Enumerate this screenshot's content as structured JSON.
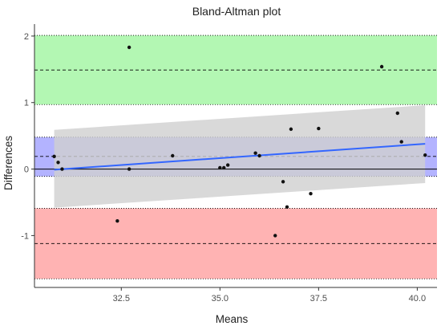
{
  "chart_data": {
    "type": "scatter",
    "title": "Bland-Altman plot",
    "xlabel": "Means",
    "ylabel": "Differences",
    "xlim": [
      30.3,
      40.5
    ],
    "ylim": [
      -1.78,
      2.18
    ],
    "x_ticks": [
      32.5,
      35.0,
      37.5,
      40.0
    ],
    "x_tick_labels": [
      "32.5",
      "35.0",
      "37.5",
      "40.0"
    ],
    "y_ticks": [
      -1,
      0,
      1,
      2
    ],
    "y_tick_labels": [
      "-1",
      "0",
      "1",
      "2"
    ],
    "grid": false,
    "bands": [
      {
        "name": "upper-loa",
        "ymin": 0.97,
        "ymax": 2.01,
        "line": 1.49,
        "color": "#b3f7b3"
      },
      {
        "name": "bias",
        "ymin": -0.11,
        "ymax": 0.48,
        "line": 0.19,
        "color": "#b3b3ff"
      },
      {
        "name": "lower-loa",
        "ymin": -1.65,
        "ymax": -0.59,
        "line": -1.12,
        "color": "#ffb3b3"
      }
    ],
    "zero_line": 0,
    "points": [
      {
        "x": 30.8,
        "y": 0.19
      },
      {
        "x": 30.9,
        "y": 0.1
      },
      {
        "x": 31.0,
        "y": 0.0
      },
      {
        "x": 32.4,
        "y": -0.78
      },
      {
        "x": 32.7,
        "y": 1.83
      },
      {
        "x": 32.7,
        "y": 0.0
      },
      {
        "x": 33.8,
        "y": 0.2
      },
      {
        "x": 35.0,
        "y": 0.02
      },
      {
        "x": 35.1,
        "y": 0.02
      },
      {
        "x": 35.2,
        "y": 0.06
      },
      {
        "x": 35.9,
        "y": 0.24
      },
      {
        "x": 36.0,
        "y": 0.2
      },
      {
        "x": 36.6,
        "y": -0.19
      },
      {
        "x": 36.8,
        "y": 0.6
      },
      {
        "x": 36.7,
        "y": -0.57
      },
      {
        "x": 36.4,
        "y": -1.0
      },
      {
        "x": 37.3,
        "y": -0.37
      },
      {
        "x": 37.5,
        "y": 0.61
      },
      {
        "x": 39.1,
        "y": 1.54
      },
      {
        "x": 39.5,
        "y": 0.84
      },
      {
        "x": 39.6,
        "y": 0.41
      },
      {
        "x": 40.2,
        "y": 0.21
      }
    ],
    "regression": {
      "x": [
        30.8,
        40.2
      ],
      "y": [
        -0.01,
        0.38
      ],
      "color": "#3366ff"
    },
    "confidence_band": {
      "x": [
        30.8,
        40.2
      ],
      "upper": [
        0.59,
        0.96
      ],
      "lower": [
        -0.58,
        -0.21
      ],
      "color": "#d0d0d0"
    }
  }
}
